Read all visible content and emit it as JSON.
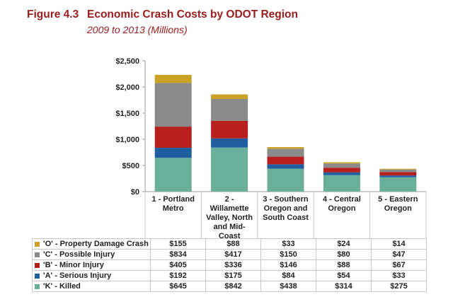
{
  "figure": {
    "number": "Figure 4.3",
    "title": "Economic Crash Costs by ODOT Region",
    "subtitle": "2009 to 2013 (Millions)"
  },
  "chart_data": {
    "type": "bar",
    "stacked": true,
    "categories": [
      "1 - Portland Metro",
      "2 - Willamette Valley, North and Mid-Coast",
      "3 - Southern Oregon and South Coast",
      "4 - Central Oregon",
      "5 - Eastern Oregon"
    ],
    "category_lines": [
      [
        "1 - Portland",
        "Metro"
      ],
      [
        "2 -",
        "Willamette",
        "Valley, North",
        "and Mid-",
        "Coast"
      ],
      [
        "3 - Southern",
        "Oregon and",
        "South Coast"
      ],
      [
        "4 - Central",
        "Oregon"
      ],
      [
        "5 - Eastern",
        "Oregon"
      ]
    ],
    "ylim": [
      0,
      2500
    ],
    "yticks": [
      0,
      500,
      1000,
      1500,
      2000,
      2500
    ],
    "ytick_labels": [
      "$0",
      "$500",
      "$1,000",
      "$1,500",
      "$2,000",
      "$2,500"
    ],
    "series": [
      {
        "name": "'K' - Killed",
        "color": "#6aaf9a",
        "values": [
          645,
          842,
          438,
          314,
          275
        ],
        "labels": [
          "$645",
          "$842",
          "$438",
          "$314",
          "$275"
        ]
      },
      {
        "name": "'A' - Serious Injury",
        "color": "#1f5fa0",
        "values": [
          192,
          175,
          84,
          54,
          33
        ],
        "labels": [
          "$192",
          "$175",
          "$84",
          "$54",
          "$33"
        ]
      },
      {
        "name": "'B' - Minor Injury",
        "color": "#b8201f",
        "values": [
          405,
          336,
          146,
          88,
          67
        ],
        "labels": [
          "$405",
          "$336",
          "$146",
          "$88",
          "$67"
        ]
      },
      {
        "name": "'C' - Possible Injury",
        "color": "#8a8a8a",
        "values": [
          834,
          417,
          150,
          80,
          47
        ],
        "labels": [
          "$834",
          "$417",
          "$150",
          "$80",
          "$47"
        ]
      },
      {
        "name": "'O' - Property Damage Crash",
        "color": "#c9a226",
        "values": [
          155,
          88,
          33,
          24,
          14
        ],
        "labels": [
          "$155",
          "$88",
          "$33",
          "$24",
          "$14"
        ]
      }
    ],
    "table_row_order": [
      "'O' - Property Damage Crash",
      "'C' - Possible Injury",
      "'B' - Minor Injury",
      "'A' - Serious Injury",
      "'K' - Killed"
    ]
  }
}
